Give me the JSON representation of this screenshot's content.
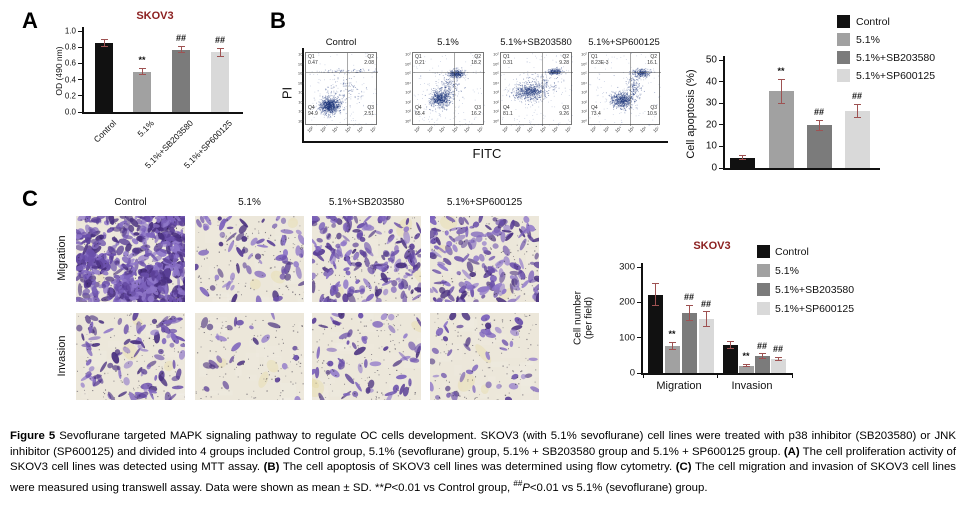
{
  "panels": {
    "a_label": "A",
    "b_label": "B",
    "c_label": "C"
  },
  "colors": {
    "series": [
      "#111111",
      "#a1a1a1",
      "#7b7b7b",
      "#d9d9d9"
    ],
    "error": "#9e5252",
    "title": "#8b1e1e",
    "scatter": "#1e3a78"
  },
  "legend_labels": [
    "Control",
    "5.1%",
    "5.1%+SB203580",
    "5.1%+SP600125"
  ],
  "labels": {
    "cell_number_l1": "Cell number",
    "cell_number_l2": "(per field)"
  },
  "chart_data": [
    {
      "id": "mtt-assay",
      "type": "bar",
      "title": "SKOV3",
      "ylabel": "OD (490 nm)",
      "categories": [
        "Control",
        "5.1%",
        "5.1%+SB203580",
        "5.1%+SP600125"
      ],
      "values": [
        0.85,
        0.5,
        0.77,
        0.74
      ],
      "errors": [
        0.04,
        0.04,
        0.04,
        0.05
      ],
      "annotations": [
        "",
        "**",
        "##",
        "##"
      ],
      "ylim": [
        0,
        1.0
      ],
      "yticks": [
        0,
        0.2,
        0.4,
        0.6,
        0.8,
        1.0
      ]
    },
    {
      "id": "apoptosis",
      "type": "bar",
      "title": "",
      "ylabel": "Cell apoptosis (%)",
      "categories": [
        "Control",
        "5.1%",
        "5.1%+SB203580",
        "5.1%+SP600125"
      ],
      "values": [
        4.8,
        35.5,
        19.8,
        26.5
      ],
      "errors": [
        0.8,
        5.5,
        2.3,
        3.0
      ],
      "annotations": [
        "",
        "**",
        "##",
        "##"
      ],
      "ylim": [
        0,
        50
      ],
      "yticks": [
        0,
        10,
        20,
        30,
        40,
        50
      ],
      "legend_position": "top-right"
    },
    {
      "id": "transwell",
      "type": "grouped-bar",
      "title": "SKOV3",
      "ylabel": "Cell number (per field)",
      "categories": [
        "Migration",
        "Invasion"
      ],
      "series": [
        {
          "name": "Control",
          "values": [
            222,
            80
          ],
          "errors": [
            32,
            10
          ],
          "annotations": [
            "",
            ""
          ]
        },
        {
          "name": "5.1%",
          "values": [
            77,
            21
          ],
          "errors": [
            10,
            4
          ],
          "annotations": [
            "**",
            "**"
          ]
        },
        {
          "name": "5.1%+SB203580",
          "values": [
            170,
            48
          ],
          "errors": [
            22,
            7
          ],
          "annotations": [
            "##",
            "##"
          ]
        },
        {
          "name": "5.1%+SP600125",
          "values": [
            153,
            39
          ],
          "errors": [
            20,
            5
          ],
          "annotations": [
            "##",
            "##"
          ]
        }
      ],
      "ylim": [
        0,
        300
      ],
      "yticks": [
        0,
        100,
        200,
        300
      ],
      "legend_position": "right"
    }
  ],
  "flow": {
    "xlabel": "FITC",
    "ylabel": "PI",
    "xticks": [
      "10²",
      "10³",
      "10⁴",
      "10⁵",
      "10⁶",
      "10⁷"
    ],
    "yticks": [
      "10⁷",
      "10⁶",
      "10⁵",
      "10⁴",
      "10³",
      "10²",
      "10¹",
      "10⁰"
    ],
    "plots": [
      {
        "title": "Control",
        "quadrants": {
          "Q1": "0.47",
          "Q2": "2.08",
          "Q3": "2.51",
          "Q4": "94.9"
        },
        "clusters": [
          [
            0.33,
            0.72,
            0.07,
            0.05,
            900
          ],
          [
            0.5,
            0.52,
            0.13,
            0.1,
            130
          ],
          [
            0.55,
            0.24,
            0.3,
            0.015,
            70
          ]
        ],
        "noise": 130
      },
      {
        "title": "5.1%",
        "quadrants": {
          "Q1": "0.21",
          "Q2": "18.2",
          "Q3": "16.2",
          "Q4": "65.4"
        },
        "clusters": [
          [
            0.38,
            0.62,
            0.07,
            0.055,
            650
          ],
          [
            0.6,
            0.28,
            0.055,
            0.03,
            340
          ],
          [
            0.5,
            0.45,
            0.09,
            0.09,
            180
          ]
        ],
        "noise": 160
      },
      {
        "title": "5.1%+SB203580",
        "quadrants": {
          "Q1": "0.31",
          "Q2": "9.28",
          "Q3": "9.26",
          "Q4": "81.1"
        },
        "clusters": [
          [
            0.38,
            0.53,
            0.1,
            0.055,
            620
          ],
          [
            0.74,
            0.25,
            0.05,
            0.022,
            230
          ],
          [
            0.55,
            0.44,
            0.13,
            0.07,
            170
          ]
        ],
        "noise": 160
      },
      {
        "title": "5.1%+SP600125",
        "quadrants": {
          "Q1": "8.23E-3",
          "Q2": "16.1",
          "Q3": "10.5",
          "Q4": "73.4"
        },
        "clusters": [
          [
            0.46,
            0.64,
            0.08,
            0.055,
            660
          ],
          [
            0.73,
            0.27,
            0.055,
            0.028,
            260
          ],
          [
            0.62,
            0.45,
            0.05,
            0.09,
            160
          ]
        ],
        "noise": 140
      }
    ]
  },
  "transwell_images": {
    "col_headers": [
      "Control",
      "5.1%",
      "5.1%+SB203580",
      "5.1%+SP600125"
    ],
    "row_labels": [
      "Migration",
      "Invasion"
    ],
    "density": [
      [
        300,
        70,
        180,
        160
      ],
      [
        95,
        26,
        60,
        48
      ]
    ],
    "clumpy": [
      [
        true,
        false,
        false,
        false
      ],
      [
        false,
        false,
        false,
        false
      ]
    ],
    "palette": [
      "#5a3f96",
      "#6b50ab",
      "#7d63bc",
      "#8f77c9",
      "#49307f"
    ],
    "bg": "#ece7da"
  },
  "caption": {
    "segments": [
      {
        "t": "Figure 5 ",
        "b": 1
      },
      {
        "t": "Sevoflurane targeted MAPK signaling pathway to regulate OC cells development. SKOV3 (with 5.1% sevoflurane) cell lines were treated with p38 inhibitor (SB203580) or JNK inhibitor (SP600125) and divided into 4 groups included Control group, 5.1% (sevoflurane) group, 5.1% + SB203580 group and 5.1% + SP600125 group. "
      },
      {
        "t": "(A)",
        "b": 1
      },
      {
        "t": " The cell proliferation activity of SKOV3 cell lines was detected using MTT assay. "
      },
      {
        "t": "(B)",
        "b": 1
      },
      {
        "t": " The cell apoptosis of SKOV3 cell lines was determined using flow cytometry. "
      },
      {
        "t": "(C)",
        "b": 1
      },
      {
        "t": " The cell migration and invasion of SKOV3 cell lines were measured using transwell assay. Data were shown as mean ± SD. **"
      },
      {
        "t": "P",
        "i": 1
      },
      {
        "t": "<0.01 vs Control group, "
      },
      {
        "t": "##",
        "sup": 1
      },
      {
        "t": "P",
        "i": 1
      },
      {
        "t": "<0.01 vs 5.1% (sevoflurane) group."
      }
    ]
  }
}
